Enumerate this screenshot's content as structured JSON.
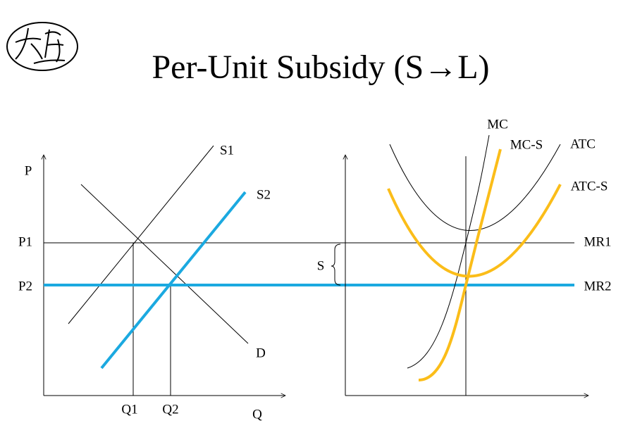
{
  "title": "Per-Unit Subsidy (S→L)",
  "left_graph": {
    "y_axis": "P",
    "x_axis": "Q",
    "price_levels": [
      "P1",
      "P2"
    ],
    "quantities": [
      "Q1",
      "Q2"
    ],
    "curves": [
      "S1",
      "S2",
      "D"
    ]
  },
  "right_graph": {
    "curves": [
      "MC",
      "MC-S",
      "ATC",
      "ATC-S"
    ],
    "revenue_lines": [
      "MR1",
      "MR2"
    ],
    "subsidy": "S"
  }
}
